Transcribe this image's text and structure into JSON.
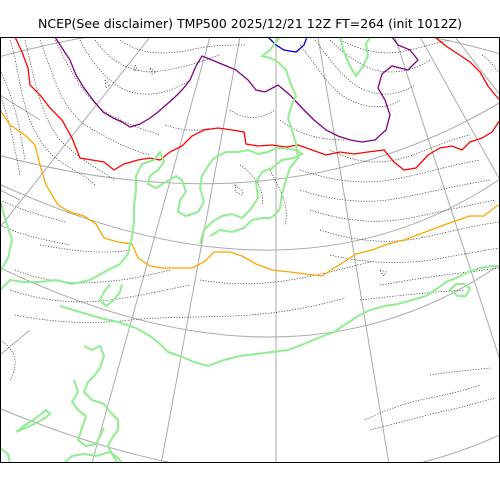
{
  "title": "NCEP(See disclaimer) TMP500 2025/12/21 12Z FT=264 (init 1012Z)",
  "map": {
    "projection": "polar-stereographic",
    "variable": "TMP500",
    "colors": {
      "background": "#ffffff",
      "frame": "#000000",
      "graticule": "#aaaaaa",
      "coastline": "#333333",
      "land_highlight": "#90ee90"
    },
    "isotherms": [
      {
        "name": "dark-blue",
        "color": "#0000cc"
      },
      {
        "name": "purple",
        "color": "#800080"
      },
      {
        "name": "red",
        "color": "#ff0000"
      },
      {
        "name": "orange",
        "color": "#ffa500"
      },
      {
        "name": "light-green",
        "color": "#90ee90"
      }
    ]
  }
}
